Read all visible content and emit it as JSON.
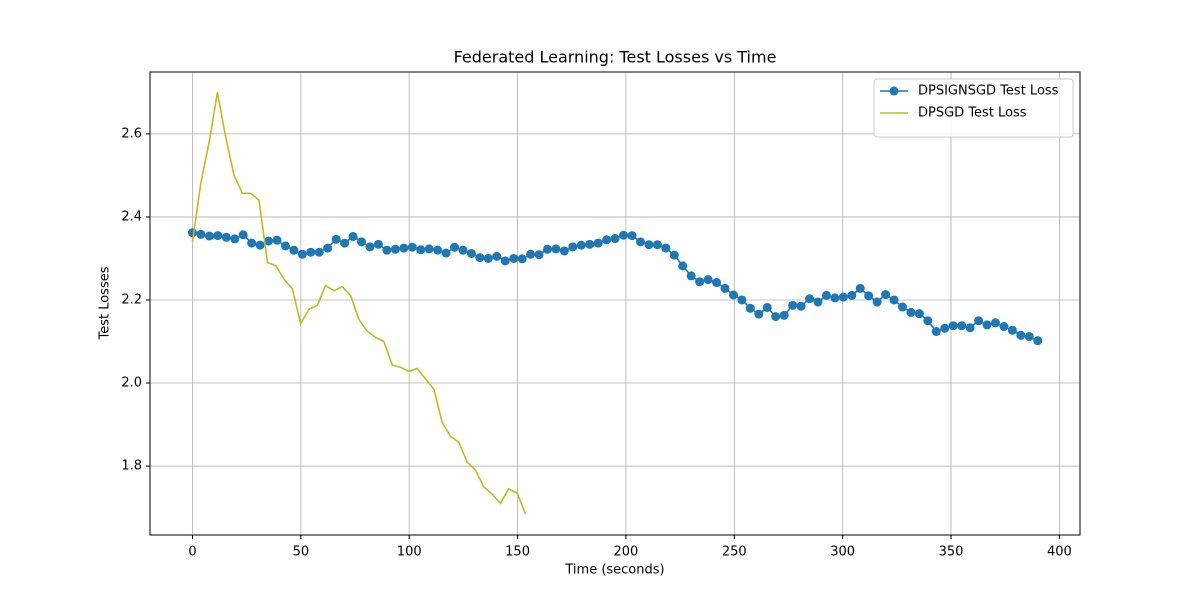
{
  "chart_data": {
    "type": "line",
    "title": "Federated Learning: Test Losses vs Time",
    "x_label": "Time (seconds)",
    "y_label": "Test Losses",
    "xlim": [
      -19.6,
      409.5
    ],
    "ylim": [
      1.634,
      2.749
    ],
    "xticks": [
      0,
      50,
      100,
      150,
      200,
      250,
      300,
      350,
      400
    ],
    "yticks": [
      1.8,
      {
        "value": 2,
        "label": "2.0"
      },
      2.2,
      2.4,
      2.6
    ],
    "grid": true,
    "legend": "upper right",
    "series": [
      {
        "name": "DPSIGNSGD Test Loss",
        "color": "#1f77b4",
        "marker": "circle",
        "x": [
          0,
          3.9,
          7.8,
          11.7,
          15.6,
          19.5,
          23.4,
          27.3,
          31.2,
          35.1,
          39,
          42.9,
          46.8,
          50.7,
          54.6,
          58.5,
          62.4,
          66.3,
          70.2,
          74.1,
          78,
          81.9,
          85.8,
          89.7,
          93.6,
          97.5,
          101.4,
          105.3,
          109.2,
          113.1,
          117,
          120.9,
          124.8,
          128.7,
          132.6,
          136.5,
          140.4,
          144.3,
          148.2,
          152.1,
          156,
          159.9,
          163.8,
          167.7,
          171.6,
          175.5,
          179.4,
          183.3,
          187.2,
          191.1,
          195,
          198.9,
          202.8,
          206.7,
          210.6,
          214.5,
          218.4,
          222.3,
          226.2,
          230.1,
          234,
          237.9,
          241.8,
          245.7,
          249.6,
          253.5,
          257.4,
          261.3,
          265.2,
          269.1,
          273,
          276.9,
          280.8,
          284.7,
          288.6,
          292.5,
          296.4,
          300.3,
          304.2,
          308.1,
          312,
          315.9,
          319.8,
          323.7,
          327.6,
          331.5,
          335.4,
          339.3,
          343.2,
          347.1,
          351,
          354.9,
          358.8,
          362.7,
          366.6,
          370.5,
          374.4,
          378.3,
          382.2,
          386.1,
          390
        ],
        "values": [
          2.362,
          2.358,
          2.354,
          2.355,
          2.351,
          2.347,
          2.357,
          2.337,
          2.332,
          2.342,
          2.344,
          2.33,
          2.32,
          2.31,
          2.315,
          2.315,
          2.325,
          2.346,
          2.337,
          2.353,
          2.34,
          2.328,
          2.334,
          2.32,
          2.322,
          2.325,
          2.327,
          2.321,
          2.323,
          2.32,
          2.313,
          2.327,
          2.32,
          2.312,
          2.302,
          2.3,
          2.305,
          2.294,
          2.3,
          2.299,
          2.31,
          2.309,
          2.322,
          2.323,
          2.318,
          2.328,
          2.332,
          2.334,
          2.337,
          2.345,
          2.348,
          2.356,
          2.355,
          2.34,
          2.333,
          2.333,
          2.325,
          2.308,
          2.282,
          2.258,
          2.244,
          2.249,
          2.242,
          2.228,
          2.212,
          2.2,
          2.18,
          2.166,
          2.182,
          2.16,
          2.163,
          2.187,
          2.185,
          2.203,
          2.195,
          2.211,
          2.205,
          2.207,
          2.211,
          2.228,
          2.21,
          2.195,
          2.213,
          2.2,
          2.183,
          2.17,
          2.167,
          2.15,
          2.124,
          2.132,
          2.138,
          2.138,
          2.133,
          2.15,
          2.14,
          2.145,
          2.136,
          2.127,
          2.115,
          2.112,
          2.102
        ]
      },
      {
        "name": "DPSGD Test Loss",
        "color": "#bcbd22",
        "x": [
          0,
          3.8,
          7.7,
          11.5,
          15.4,
          19.2,
          23.0,
          26.9,
          30.7,
          34.6,
          38.4,
          42.2,
          46.1,
          49.9,
          53.8,
          57.6,
          61.4,
          65.3,
          69.1,
          73.0,
          76.8,
          80.6,
          84.5,
          88.3,
          92.2,
          96.0,
          99.8,
          103.7,
          107.5,
          111.4,
          115.2,
          119.0,
          122.9,
          126.7,
          130.6,
          134.4,
          138.2,
          142.1,
          145.9,
          149.8,
          153.6
        ],
        "values": [
          2.34,
          2.48,
          2.58,
          2.7,
          2.59,
          2.5,
          2.457,
          2.457,
          2.44,
          2.29,
          2.283,
          2.25,
          2.227,
          2.143,
          2.178,
          2.187,
          2.235,
          2.222,
          2.232,
          2.21,
          2.153,
          2.125,
          2.11,
          2.1,
          2.043,
          2.038,
          2.028,
          2.035,
          2.01,
          1.985,
          1.905,
          1.872,
          1.857,
          1.81,
          1.79,
          1.75,
          1.733,
          1.71,
          1.745,
          1.735,
          1.685
        ]
      }
    ]
  }
}
